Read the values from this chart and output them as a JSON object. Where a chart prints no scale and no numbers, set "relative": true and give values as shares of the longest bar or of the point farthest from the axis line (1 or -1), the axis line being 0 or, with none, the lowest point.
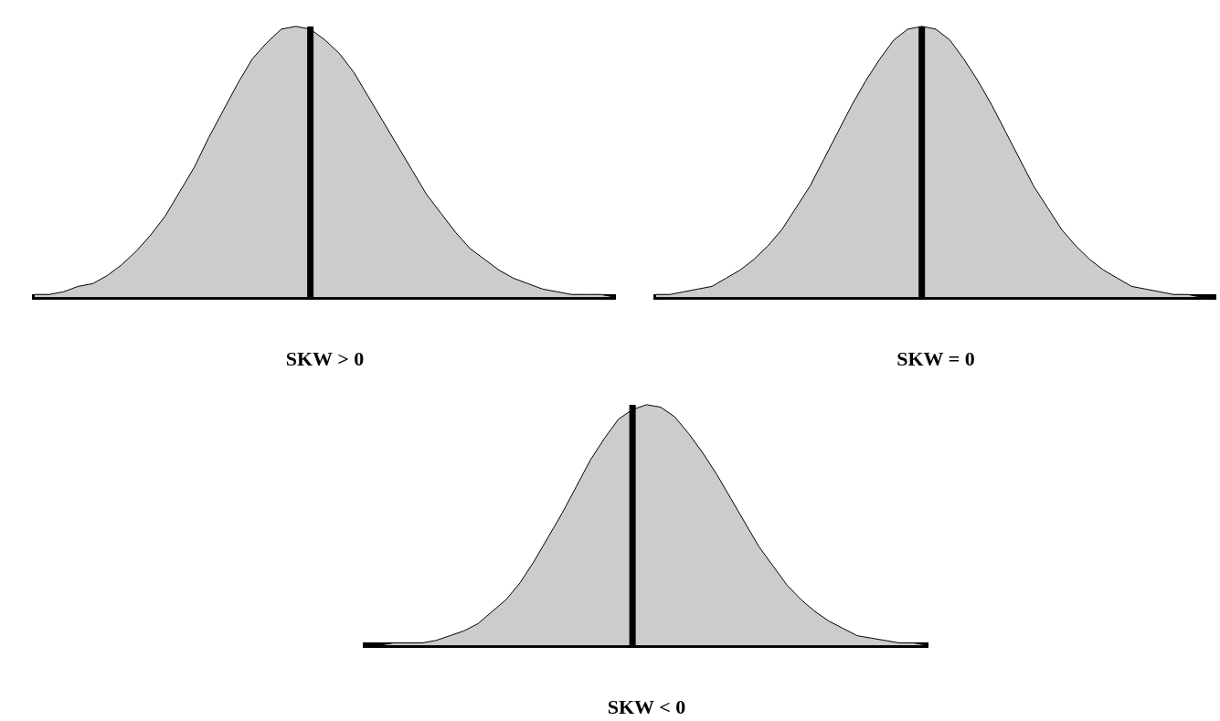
{
  "chart_data": [
    {
      "type": "area",
      "xlabel": "SKW > 0",
      "relative": true,
      "categories": [
        null,
        null,
        null,
        null,
        null,
        null,
        null,
        null,
        null,
        null,
        null,
        null,
        null,
        null,
        null,
        null,
        null,
        null,
        null,
        null,
        null,
        null,
        null,
        null,
        null,
        null,
        null,
        null,
        null,
        null,
        null,
        null,
        null,
        null,
        null,
        null,
        null,
        null,
        null,
        null,
        null
      ],
      "series": [
        {
          "color": "#cccccc",
          "values": [
            0.01,
            0.01,
            0.02,
            0.04,
            0.05,
            0.08,
            0.12,
            0.17,
            0.23,
            0.3,
            0.39,
            0.48,
            0.59,
            0.69,
            0.79,
            0.88,
            0.94,
            0.99,
            1,
            0.99,
            0.95,
            0.9,
            0.83,
            0.74,
            0.65,
            0.56,
            0.47,
            0.38,
            0.31,
            0.24,
            0.18,
            0.14,
            0.1,
            0.07,
            0.05,
            0.03,
            0.02,
            0.01,
            0.01,
            0.01,
            0
          ]
        }
      ]
    },
    {
      "type": "area",
      "xlabel": "SKW = 0",
      "relative": true,
      "categories": [
        null,
        null,
        null,
        null,
        null,
        null,
        null,
        null,
        null,
        null,
        null,
        null,
        null,
        null,
        null,
        null,
        null,
        null,
        null,
        null,
        null,
        null,
        null,
        null,
        null,
        null,
        null,
        null,
        null,
        null,
        null,
        null,
        null,
        null,
        null,
        null,
        null,
        null,
        null,
        null,
        null
      ],
      "series": [
        {
          "color": "#cccccc",
          "values": [
            0.01,
            0.01,
            0.02,
            0.03,
            0.04,
            0.07,
            0.1,
            0.14,
            0.19,
            0.25,
            0.33,
            0.41,
            0.51,
            0.61,
            0.71,
            0.8,
            0.88,
            0.95,
            0.99,
            1,
            0.99,
            0.95,
            0.88,
            0.8,
            0.71,
            0.61,
            0.51,
            0.41,
            0.33,
            0.25,
            0.19,
            0.14,
            0.1,
            0.07,
            0.04,
            0.03,
            0.02,
            0.01,
            0.01,
            0,
            0
          ]
        }
      ]
    },
    {
      "type": "area",
      "xlabel": "SKW < 0",
      "relative": true,
      "categories": [
        null,
        null,
        null,
        null,
        null,
        null,
        null,
        null,
        null,
        null,
        null,
        null,
        null,
        null,
        null,
        null,
        null,
        null,
        null,
        null,
        null,
        null,
        null,
        null,
        null,
        null,
        null,
        null,
        null,
        null,
        null,
        null,
        null,
        null,
        null,
        null,
        null,
        null,
        null,
        null,
        null
      ],
      "series": [
        {
          "color": "#cccccc",
          "values": [
            0,
            0,
            0.01,
            0.01,
            0.01,
            0.02,
            0.04,
            0.06,
            0.09,
            0.14,
            0.19,
            0.26,
            0.35,
            0.45,
            0.55,
            0.66,
            0.77,
            0.86,
            0.94,
            0.98,
            1,
            0.99,
            0.95,
            0.88,
            0.8,
            0.71,
            0.61,
            0.51,
            0.41,
            0.33,
            0.25,
            0.19,
            0.14,
            0.1,
            0.07,
            0.04,
            0.03,
            0.02,
            0.01,
            0.01,
            0
          ]
        }
      ]
    }
  ]
}
